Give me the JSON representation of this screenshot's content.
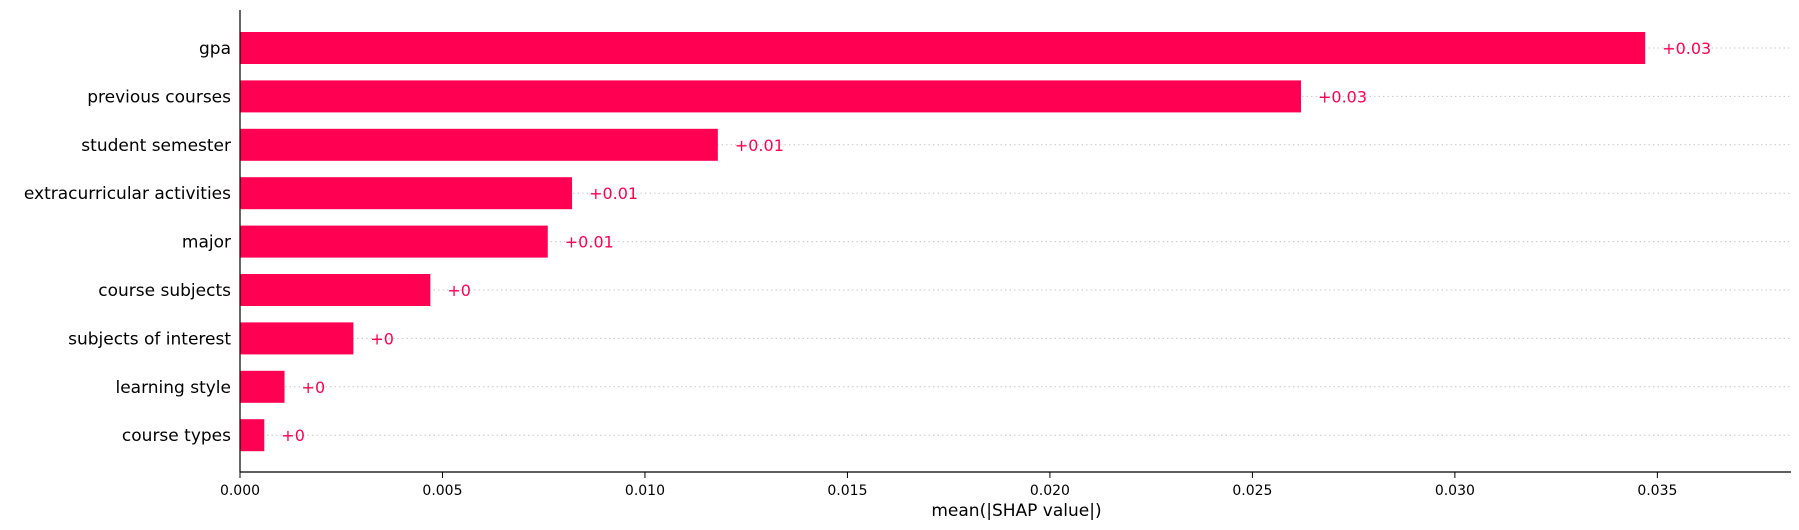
{
  "chart_data": {
    "type": "bar",
    "orientation": "horizontal",
    "categories": [
      "gpa",
      "previous courses",
      "student semester",
      "extracurricular activities",
      "major",
      "course subjects",
      "subjects of interest",
      "learning style",
      "course types"
    ],
    "values": [
      0.0347,
      0.0262,
      0.0118,
      0.0082,
      0.0076,
      0.0047,
      0.0028,
      0.0011,
      0.0006
    ],
    "value_labels": [
      "+0.03",
      "+0.03",
      "+0.01",
      "+0.01",
      "+0.01",
      "+0",
      "+0",
      "+0",
      "+0"
    ],
    "xlabel": "mean(|SHAP value|)",
    "ylabel": "",
    "title": "",
    "xlim": [
      0,
      0.0383
    ],
    "xticks": [
      0.0,
      0.005,
      0.01,
      0.015,
      0.02,
      0.025,
      0.03,
      0.035
    ],
    "xtick_labels": [
      "0.000",
      "0.005",
      "0.010",
      "0.015",
      "0.020",
      "0.025",
      "0.030",
      "0.035"
    ],
    "grid": "dotted horizontal guide lines per bar",
    "legend": "none",
    "bar_color": "#ff0052",
    "label_color": "#ff0052"
  }
}
